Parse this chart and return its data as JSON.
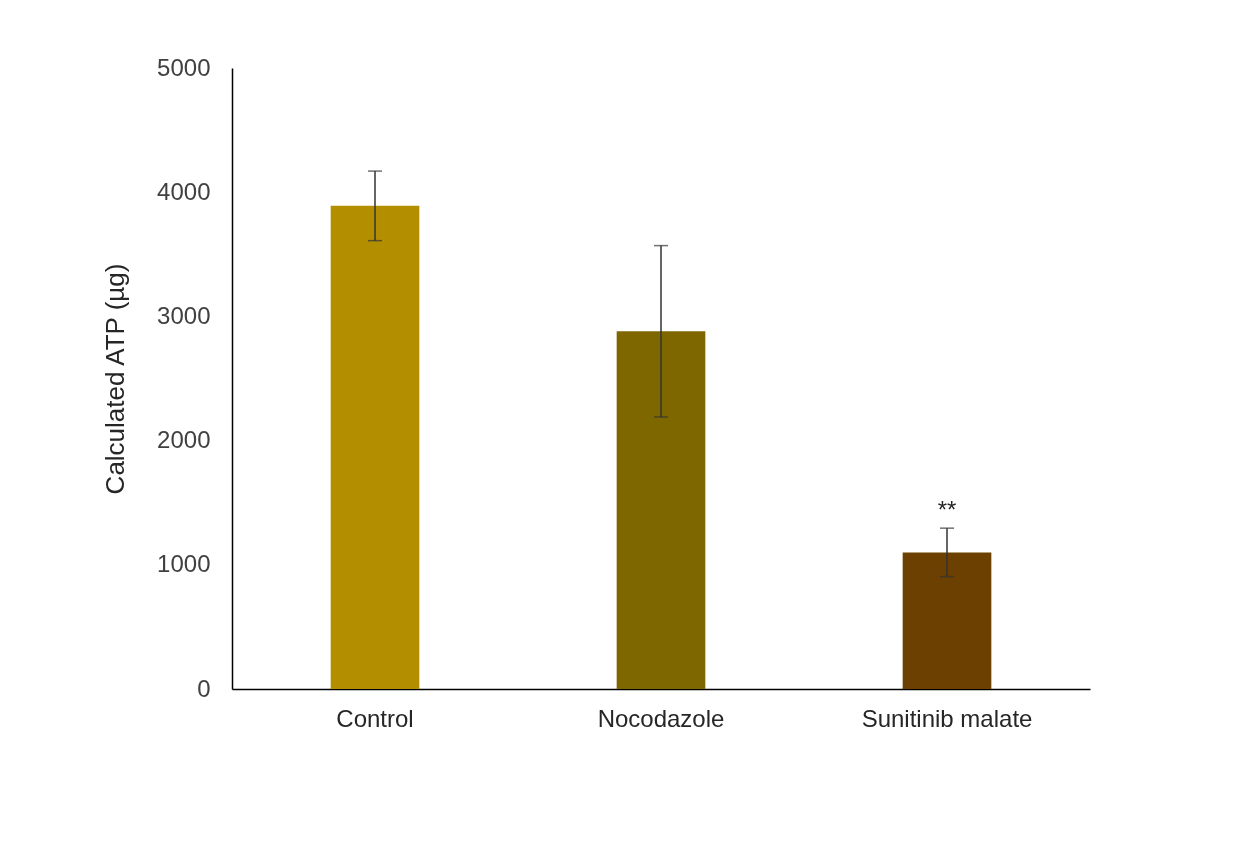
{
  "chart_data": {
    "type": "bar",
    "ylabel": "Calculated ATP (µg)",
    "categories": [
      "Control",
      "Nocodazole",
      "Sunitinib malate"
    ],
    "values": [
      3890,
      2880,
      1100
    ],
    "colors": [
      "#b38f00",
      "#7f6700",
      "#6b4000"
    ],
    "errors": [
      280,
      690,
      195
    ],
    "ylim": [
      0,
      5000
    ],
    "yticks": [
      0,
      1000,
      2000,
      3000,
      4000,
      5000
    ],
    "grid": false,
    "annotations": [
      {
        "text": "**",
        "x": "Sunitinib malate",
        "y": 1290
      }
    ]
  }
}
